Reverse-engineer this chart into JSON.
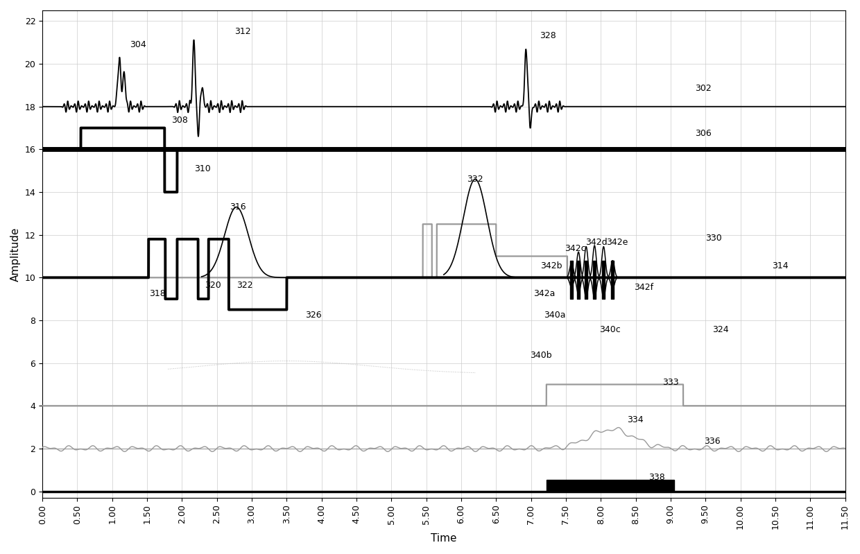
{
  "xlabel": "Time",
  "ylabel": "Amplitude",
  "xlim": [
    0.0,
    11.5
  ],
  "ylim": [
    -0.3,
    22.5
  ],
  "xticks": [
    0.0,
    0.5,
    1.0,
    1.5,
    2.0,
    2.5,
    3.0,
    3.5,
    4.0,
    4.5,
    5.0,
    5.5,
    6.0,
    6.5,
    7.0,
    7.5,
    8.0,
    8.5,
    9.0,
    9.5,
    10.0,
    10.5,
    11.0,
    11.5
  ],
  "yticks": [
    0,
    2,
    4,
    6,
    8,
    10,
    12,
    14,
    16,
    18,
    20,
    22
  ],
  "bg_color": "#ffffff",
  "grid_color": "#cccccc",
  "annot_fontsize": 9,
  "annotations": [
    [
      "302",
      9.35,
      18.85
    ],
    [
      "304",
      1.25,
      20.9
    ],
    [
      "306",
      9.35,
      16.75
    ],
    [
      "308",
      1.85,
      17.35
    ],
    [
      "310",
      2.18,
      15.1
    ],
    [
      "312",
      2.75,
      21.5
    ],
    [
      "314",
      10.45,
      10.55
    ],
    [
      "316",
      2.68,
      13.3
    ],
    [
      "318",
      1.53,
      9.25
    ],
    [
      "320",
      2.32,
      9.65
    ],
    [
      "322",
      2.78,
      9.65
    ],
    [
      "324",
      9.6,
      7.55
    ],
    [
      "326",
      3.77,
      8.25
    ],
    [
      "328",
      7.12,
      21.3
    ],
    [
      "330",
      9.5,
      11.85
    ],
    [
      "332",
      6.08,
      14.6
    ],
    [
      "333",
      8.88,
      5.1
    ],
    [
      "334",
      8.38,
      3.35
    ],
    [
      "336",
      9.48,
      2.35
    ],
    [
      "338",
      8.68,
      0.65
    ],
    [
      "340a",
      7.18,
      8.25
    ],
    [
      "340b",
      6.98,
      6.35
    ],
    [
      "340c",
      7.98,
      7.55
    ],
    [
      "342a",
      7.03,
      9.25
    ],
    [
      "342b",
      7.13,
      10.55
    ],
    [
      "342c",
      7.48,
      11.35
    ],
    [
      "342d",
      7.78,
      11.65
    ],
    [
      "342e",
      8.08,
      11.65
    ],
    [
      "342f",
      8.48,
      9.55
    ]
  ]
}
